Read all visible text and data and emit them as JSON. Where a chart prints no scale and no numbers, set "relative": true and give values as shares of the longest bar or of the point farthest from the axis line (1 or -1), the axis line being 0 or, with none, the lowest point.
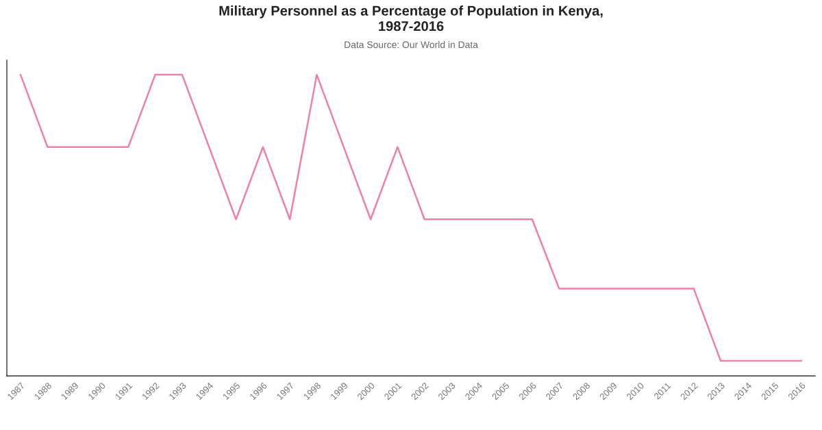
{
  "chart_data": {
    "type": "line",
    "title": "Military Personnel as a Percentage of Population in Kenya,\n1987-2016",
    "subtitle": "Data Source: Our World in Data",
    "categories": [
      "1987",
      "1988",
      "1989",
      "1990",
      "1991",
      "1992",
      "1993",
      "1994",
      "1995",
      "1996",
      "1997",
      "1998",
      "1999",
      "2000",
      "2001",
      "2002",
      "2003",
      "2004",
      "2005",
      "2006",
      "2007",
      "2008",
      "2009",
      "2010",
      "2011",
      "2012",
      "2013",
      "2014",
      "2015",
      "2016"
    ],
    "series": [
      {
        "color": "#ee7fab",
        "values": [
          1,
          0.76,
          0.76,
          0.76,
          0.76,
          1,
          1,
          0.76,
          0.52,
          0.76,
          0.52,
          1,
          0.76,
          0.52,
          0.76,
          0.52,
          0.52,
          0.52,
          0.52,
          0.52,
          0.29,
          0.29,
          0.29,
          0.29,
          0.29,
          0.29,
          0.05,
          0.05,
          0.05,
          0.05
        ]
      }
    ],
    "relative": true,
    "grid": false,
    "legend": false,
    "marker": "none",
    "line_style": "solid"
  }
}
